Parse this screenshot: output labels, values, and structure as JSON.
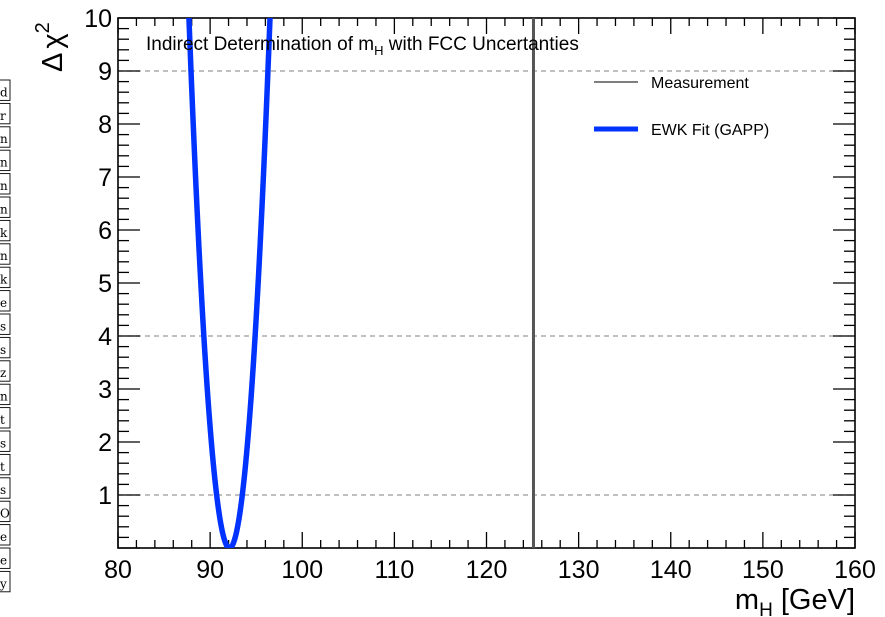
{
  "chart_data": {
    "type": "line",
    "title_main": "Indirect Determination of m",
    "title_sub": "H",
    "title_tail": " with FCC Uncertanties",
    "xlabel_main": "m",
    "xlabel_sub": "H",
    "xlabel_tail": " [GeV]",
    "ylabel_main": "χ",
    "ylabel_sup": "2",
    "ylabel_prefix": "Δ",
    "xlim": [
      80,
      160
    ],
    "ylim": [
      0,
      10
    ],
    "x_ticks": [
      80,
      90,
      100,
      110,
      120,
      130,
      140,
      150,
      160
    ],
    "x_tick_labels": [
      "80",
      "90",
      "100",
      "110",
      "120",
      "130",
      "140",
      "150",
      "160"
    ],
    "y_ticks": [
      1,
      2,
      3,
      4,
      5,
      6,
      7,
      8,
      9,
      10
    ],
    "y_tick_labels": [
      "1",
      "2",
      "3",
      "4",
      "5",
      "6",
      "7",
      "8",
      "9",
      "10"
    ],
    "reference_lines_y": [
      1,
      4,
      9
    ],
    "grid": false,
    "legend_placement": "top-right",
    "legend": [
      {
        "label": "Measurement",
        "style": "thin-line",
        "color": "#555555"
      },
      {
        "label": "EWK Fit (GAPP)",
        "style": "thick-line",
        "color": "#0033ff"
      }
    ],
    "series": [
      {
        "name": "EWK Fit (GAPP)",
        "color": "#0033ff",
        "form": "parabola",
        "minimum_x": 92.1,
        "minimum_y": 0,
        "x_at_y10_left": 87.7,
        "x_at_y10_right": 96.5
      },
      {
        "name": "Measurement",
        "color": "#555555",
        "form": "vertical-line",
        "x": 125.1
      }
    ]
  },
  "left_strip": {
    "glyphs": [
      "d",
      "r",
      "n",
      "n",
      "n",
      "n",
      "k",
      "n",
      "k",
      "e",
      "s",
      "s",
      "z",
      "n",
      "t",
      "s",
      "t",
      "s",
      "O",
      "e",
      "e",
      "y"
    ]
  }
}
